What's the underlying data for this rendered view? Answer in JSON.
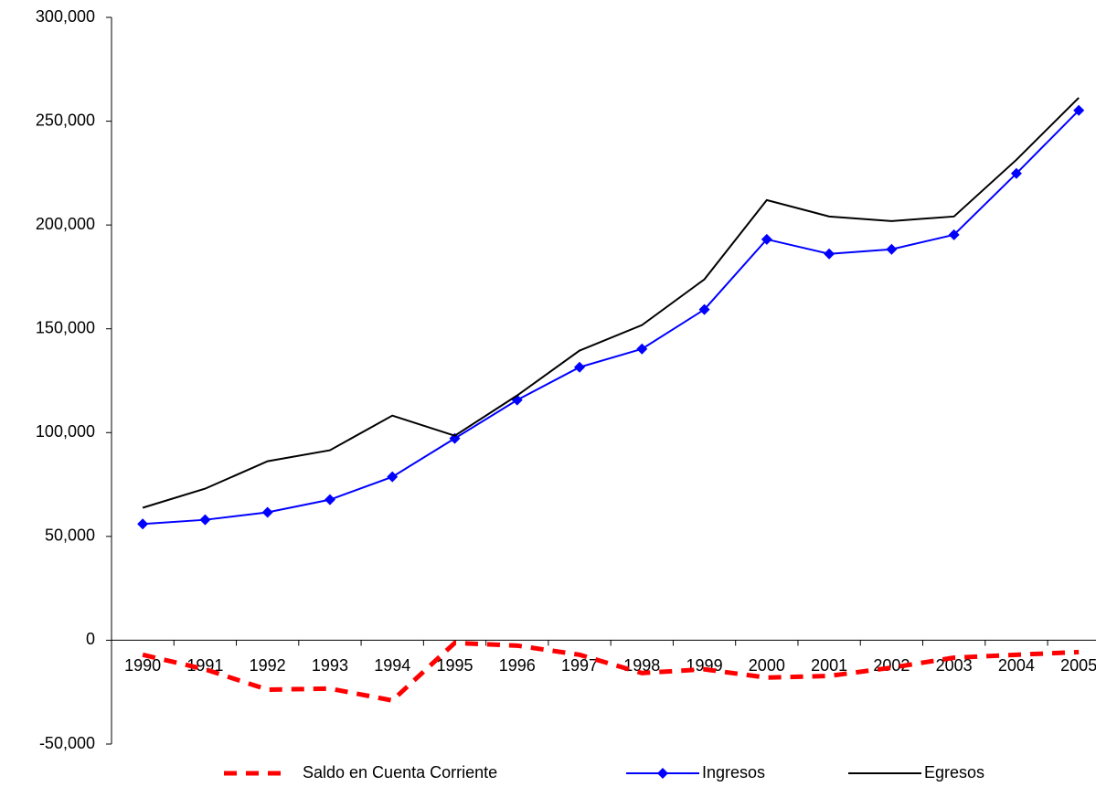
{
  "chart_data": {
    "type": "line",
    "categories": [
      "1990",
      "1991",
      "1992",
      "1993",
      "1994",
      "1995",
      "1996",
      "1997",
      "1998",
      "1999",
      "2000",
      "2001",
      "2002",
      "2003",
      "2004",
      "2005"
    ],
    "series": [
      {
        "name": "Saldo en Cuenta Corriente",
        "color": "#ff0000",
        "dash": "dashed",
        "values": [
          -7000,
          -14000,
          -23800,
          -23300,
          -29000,
          -1300,
          -2600,
          -7000,
          -15800,
          -14000,
          -18000,
          -17200,
          -13200,
          -8400,
          -7000,
          -5700
        ]
      },
      {
        "name": "Ingresos",
        "color": "#0000ff",
        "marker": "diamond",
        "values": [
          56000,
          58000,
          61600,
          67700,
          78700,
          97200,
          115700,
          131500,
          140300,
          159300,
          193100,
          186100,
          188300,
          195300,
          224800,
          255200
        ]
      },
      {
        "name": "Egresos",
        "color": "#000000",
        "values": [
          63800,
          73000,
          86200,
          91500,
          108200,
          98500,
          117900,
          139500,
          151800,
          173800,
          212000,
          204100,
          201900,
          204100,
          231400,
          261300
        ]
      }
    ],
    "ylim": [
      -50000,
      300000
    ],
    "yticks": [
      {
        "value": -50000,
        "label": "-50,000"
      },
      0,
      {
        "value": 50000,
        "label": "50,000"
      },
      {
        "value": 100000,
        "label": "100,000"
      },
      {
        "value": 150000,
        "label": "150,000"
      },
      {
        "value": 200000,
        "label": "200,000"
      },
      {
        "value": 250000,
        "label": "250,000"
      },
      {
        "value": 300000,
        "label": "300,000"
      }
    ],
    "legend": "bottom"
  }
}
